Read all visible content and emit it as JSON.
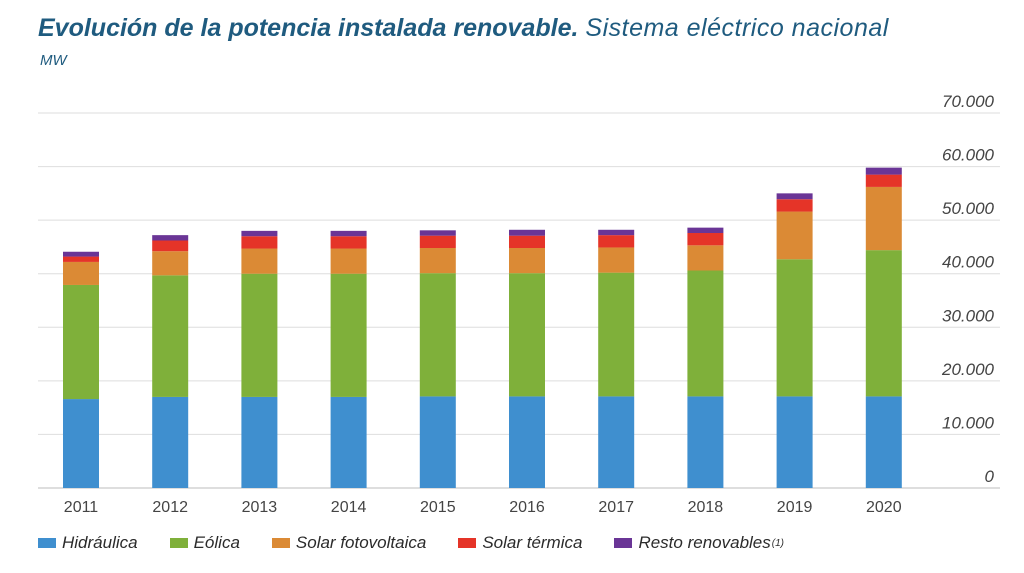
{
  "header": {
    "title_bold": "Evolución de la potencia instalada renovable.",
    "title_normal": "Sistema eléctrico nacional",
    "units": "MW"
  },
  "legend": {
    "footnote": "(1)"
  },
  "chart_data": {
    "type": "stacked-bar",
    "title": "Evolución de la potencia instalada renovable. Sistema eléctrico nacional",
    "ylabel": "MW",
    "xlabel": "",
    "categories": [
      "2011",
      "2012",
      "2013",
      "2014",
      "2015",
      "2016",
      "2017",
      "2018",
      "2019",
      "2020"
    ],
    "ylim": [
      0,
      70000
    ],
    "yticks": [
      0,
      10000,
      20000,
      30000,
      40000,
      50000,
      60000,
      70000
    ],
    "ytick_labels": [
      "0",
      "10.000",
      "20.000",
      "30.000",
      "40.000",
      "50.000",
      "60.000",
      "70.000"
    ],
    "grid": true,
    "legend_position": "bottom",
    "series": [
      {
        "name": "Hidráulica",
        "color": "#3f8fcf",
        "values": [
          16600,
          17000,
          17000,
          17000,
          17100,
          17100,
          17100,
          17100,
          17100,
          17100
        ]
      },
      {
        "name": "Eólica",
        "color": "#7fb03a",
        "values": [
          21300,
          22700,
          23000,
          23000,
          23000,
          23000,
          23100,
          23500,
          25600,
          27300
        ]
      },
      {
        "name": "Solar fotovoltaica",
        "color": "#db8a35",
        "values": [
          4300,
          4500,
          4700,
          4700,
          4700,
          4700,
          4700,
          4700,
          8900,
          11800
        ]
      },
      {
        "name": "Solar térmica",
        "color": "#e53428",
        "values": [
          1000,
          2000,
          2300,
          2300,
          2300,
          2300,
          2300,
          2300,
          2300,
          2300
        ]
      },
      {
        "name": "Resto renovables",
        "color": "#6a3596",
        "values": [
          900,
          1000,
          1000,
          1000,
          1000,
          1100,
          1000,
          1000,
          1100,
          1300
        ]
      }
    ]
  }
}
